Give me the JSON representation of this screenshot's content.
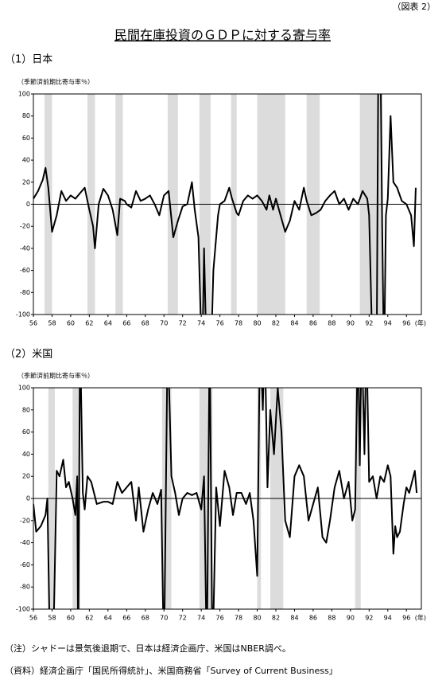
{
  "header": {
    "figure_label": "（図表 2）",
    "title": "民間在庫投資のＧＤＰに対する寄与率"
  },
  "chart_data": [
    {
      "type": "line",
      "section": "（1）日本",
      "ylabel": "（季節済前期比寄与率％）",
      "x_unit": "(年)",
      "xlim": [
        56,
        97.6
      ],
      "ylim": [
        -100,
        100
      ],
      "xticks": [
        56,
        58,
        60,
        62,
        64,
        66,
        68,
        70,
        72,
        74,
        76,
        78,
        80,
        82,
        84,
        86,
        88,
        90,
        92,
        94,
        96
      ],
      "yticks": [
        -100,
        -80,
        -60,
        -40,
        -20,
        0,
        20,
        40,
        60,
        80,
        100
      ],
      "zero_line": true,
      "shade_color": "#dcdcdc",
      "shading": [
        [
          57.2,
          58.0
        ],
        [
          61.8,
          62.6
        ],
        [
          64.8,
          65.6
        ],
        [
          70.4,
          71.5
        ],
        [
          73.8,
          75.0
        ],
        [
          77.2,
          77.8
        ],
        [
          80.0,
          83.0
        ],
        [
          85.3,
          86.7
        ],
        [
          91.0,
          93.4
        ]
      ],
      "series": [
        {
          "color": "#000000",
          "x": [
            56,
            56.5,
            57,
            57.3,
            57.6,
            58,
            58.5,
            59,
            59.5,
            60,
            60.5,
            61,
            61.5,
            62,
            62.4,
            62.6,
            63,
            63.5,
            64,
            64.5,
            65,
            65.3,
            65.8,
            66,
            66.5,
            67,
            67.5,
            68,
            68.5,
            69,
            69.5,
            70,
            70.5,
            71,
            71.5,
            72,
            72.5,
            73,
            73.3,
            73.7,
            74.1,
            74.3,
            74.6,
            75,
            75.3,
            75.8,
            76,
            76.5,
            77,
            77.3,
            77.8,
            78,
            78.5,
            79,
            79.5,
            80,
            80.5,
            81,
            81.3,
            81.7,
            82,
            82.5,
            83,
            83.5,
            84,
            84.5,
            85,
            85.3,
            85.8,
            86.3,
            86.8,
            87.3,
            87.8,
            88.3,
            88.8,
            89.3,
            89.8,
            90.3,
            90.8,
            91.3,
            91.8,
            92,
            92.4,
            92.8,
            93,
            93.2,
            93.4,
            93.6,
            93.8,
            94,
            94.3,
            94.6,
            95,
            95.5,
            96,
            96.5,
            96.8,
            97
          ],
          "values": [
            5,
            12,
            22,
            33,
            15,
            -25,
            -10,
            12,
            3,
            8,
            5,
            10,
            15,
            -5,
            -20,
            -40,
            0,
            14,
            8,
            -5,
            -28,
            5,
            3,
            0,
            -3,
            12,
            3,
            5,
            8,
            0,
            -10,
            8,
            12,
            -30,
            -15,
            -2,
            0,
            20,
            -5,
            -30,
            -150,
            -40,
            -150,
            -150,
            -60,
            -10,
            0,
            3,
            15,
            5,
            -8,
            -10,
            3,
            8,
            5,
            8,
            3,
            -5,
            8,
            -5,
            5,
            -10,
            -25,
            -15,
            3,
            -5,
            15,
            3,
            -10,
            -8,
            -5,
            3,
            8,
            12,
            0,
            5,
            -5,
            5,
            0,
            12,
            5,
            -10,
            -150,
            -150,
            150,
            150,
            -20,
            -150,
            -10,
            5,
            80,
            20,
            15,
            3,
            0,
            -10,
            -38,
            15
          ]
        }
      ]
    },
    {
      "type": "line",
      "section": "（2）米国",
      "ylabel": "（季節済前期比寄与率％）",
      "x_unit": "(年)",
      "xlim": [
        56,
        97.6
      ],
      "ylim": [
        -100,
        100
      ],
      "xticks": [
        56,
        58,
        60,
        62,
        64,
        66,
        68,
        70,
        72,
        74,
        76,
        78,
        80,
        82,
        84,
        86,
        88,
        90,
        92,
        94,
        96
      ],
      "yticks": [
        -100,
        -80,
        -60,
        -40,
        -20,
        0,
        20,
        40,
        60,
        80,
        100
      ],
      "zero_line": true,
      "shade_color": "#dcdcdc",
      "shading": [
        [
          57.6,
          58.3
        ],
        [
          60.2,
          61.0
        ],
        [
          69.8,
          70.8
        ],
        [
          73.8,
          75.2
        ],
        [
          80.0,
          80.4
        ],
        [
          81.4,
          82.8
        ],
        [
          90.5,
          91.1
        ]
      ],
      "series": [
        {
          "color": "#000000",
          "x": [
            56,
            56.3,
            56.8,
            57.3,
            57.5,
            57.8,
            58.1,
            58.5,
            58.8,
            59.2,
            59.5,
            59.8,
            60.2,
            60.5,
            60.7,
            60.8,
            61,
            61.3,
            61.5,
            61.8,
            62.2,
            62.8,
            63.5,
            64,
            64.5,
            65,
            65.5,
            66,
            66.5,
            67,
            67.3,
            67.8,
            68.3,
            68.8,
            69.3,
            69.7,
            70,
            70.4,
            70.8,
            71.2,
            71.6,
            72,
            72.5,
            73,
            73.5,
            74,
            74.3,
            74.6,
            74.9,
            75.2,
            75.6,
            76,
            76.5,
            77,
            77.4,
            77.8,
            78.3,
            78.8,
            79.2,
            79.6,
            80,
            80.3,
            80.6,
            80.8,
            81.1,
            81.4,
            81.8,
            82.2,
            82.6,
            83,
            83.5,
            84,
            84.5,
            85,
            85.5,
            86,
            86.5,
            87,
            87.4,
            87.8,
            88.3,
            88.8,
            89.3,
            89.8,
            90.2,
            90.5,
            90.8,
            91,
            91.2,
            91.5,
            91.7,
            92,
            92.4,
            92.8,
            93.2,
            93.6,
            94,
            94.3,
            94.6,
            94.8,
            95,
            95.3,
            95.7,
            96,
            96.3,
            96.6,
            96.9,
            97.1
          ],
          "values": [
            -5,
            -30,
            -25,
            -15,
            0,
            -150,
            -150,
            25,
            20,
            35,
            10,
            15,
            0,
            -15,
            20,
            -150,
            150,
            5,
            -10,
            20,
            15,
            -5,
            -3,
            -3,
            -5,
            15,
            5,
            10,
            15,
            -20,
            10,
            -30,
            -10,
            5,
            -5,
            8,
            -150,
            150,
            20,
            5,
            -15,
            0,
            5,
            3,
            5,
            -10,
            20,
            -150,
            150,
            -150,
            10,
            -25,
            25,
            10,
            -15,
            5,
            5,
            -5,
            5,
            -20,
            -70,
            150,
            80,
            150,
            10,
            80,
            40,
            100,
            60,
            -20,
            -35,
            20,
            30,
            20,
            -20,
            -5,
            10,
            -35,
            -40,
            -20,
            10,
            25,
            0,
            15,
            -20,
            -10,
            150,
            30,
            150,
            40,
            150,
            15,
            20,
            0,
            20,
            15,
            30,
            20,
            -50,
            -25,
            -35,
            -30,
            -5,
            10,
            5,
            15,
            25,
            5
          ]
        }
      ]
    }
  ],
  "notes": [
    "（注）シャドーは景気後退期で、日本は経済企画庁、米国はNBER調べ。",
    "（資料）経済企画庁「国民所得統計」、米国商務省「Survey of Current Business」"
  ]
}
